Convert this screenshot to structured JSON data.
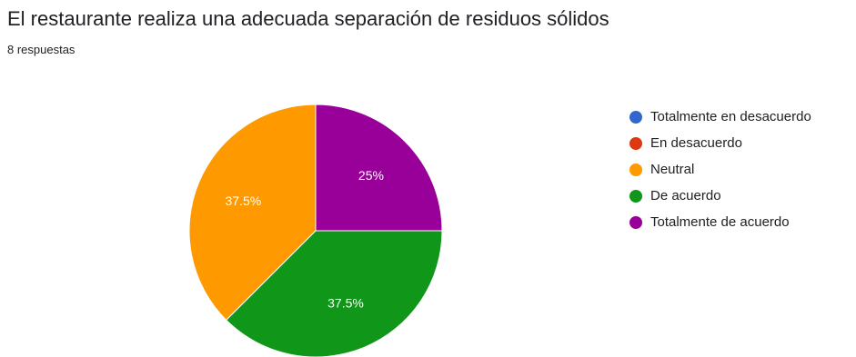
{
  "header": {
    "title": "El restaurante realiza una adecuada separación de residuos sólidos",
    "responses": "8 respuestas"
  },
  "chart_data": {
    "type": "pie",
    "categories": [
      "Totalmente en desacuerdo",
      "En desacuerdo",
      "Neutral",
      "De acuerdo",
      "Totalmente de acuerdo"
    ],
    "values": [
      0,
      0,
      37.5,
      37.5,
      25
    ],
    "slice_labels": [
      "",
      "",
      "37.5%",
      "37.5%",
      "25%"
    ],
    "colors": [
      "#3366cc",
      "#dc3912",
      "#ff9900",
      "#109618",
      "#990099"
    ],
    "start": "12 o'clock, clockwise from Totalmente de acuerdo",
    "legend_position": "right"
  }
}
